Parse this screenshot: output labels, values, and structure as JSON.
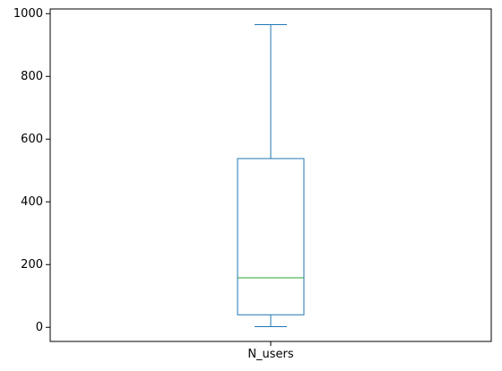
{
  "chart_data": {
    "type": "box",
    "title": "",
    "xlabel": "",
    "ylabel": "",
    "categories": [
      "N_users"
    ],
    "series": [
      {
        "whisker_low": 2,
        "q1": 40,
        "median": 158,
        "q3": 538,
        "whisker_high": 965
      }
    ],
    "ylim": [
      -45,
      1015
    ],
    "yticks": [
      0,
      200,
      400,
      600,
      800,
      1000
    ],
    "grid": false,
    "colors": {
      "box": "#1f77b4",
      "median": "#2ca02c",
      "axis": "#000000"
    }
  }
}
